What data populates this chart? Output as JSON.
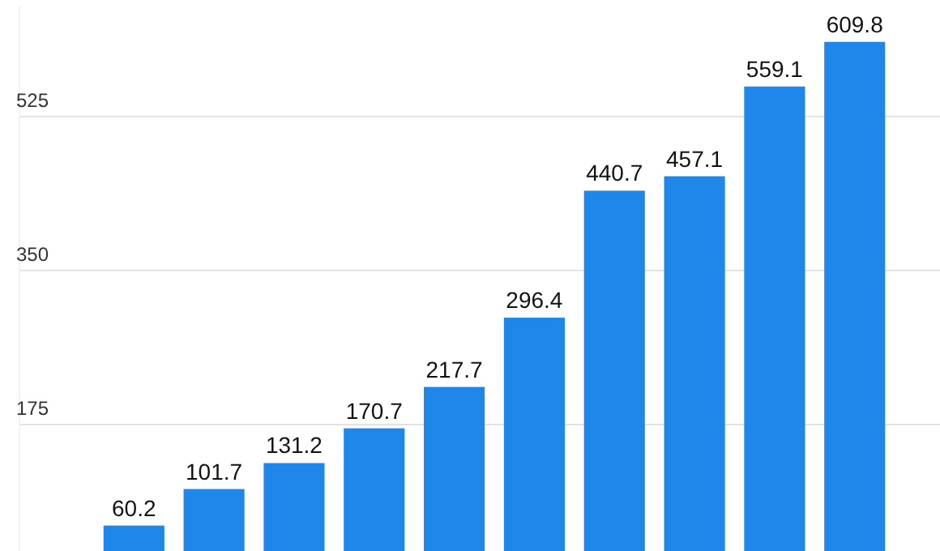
{
  "chart_data": {
    "type": "bar",
    "categories": [
      null,
      null,
      null,
      null,
      null,
      null,
      null,
      null,
      null,
      null
    ],
    "values": [
      60.2,
      101.7,
      131.2,
      170.7,
      217.7,
      296.4,
      440.7,
      457.1,
      559.1,
      609.8
    ],
    "color": "#1f86ea",
    "ylim": [
      0,
      650
    ],
    "yticks": [
      175,
      350,
      525
    ],
    "grid": "y",
    "data_labels": true
  }
}
